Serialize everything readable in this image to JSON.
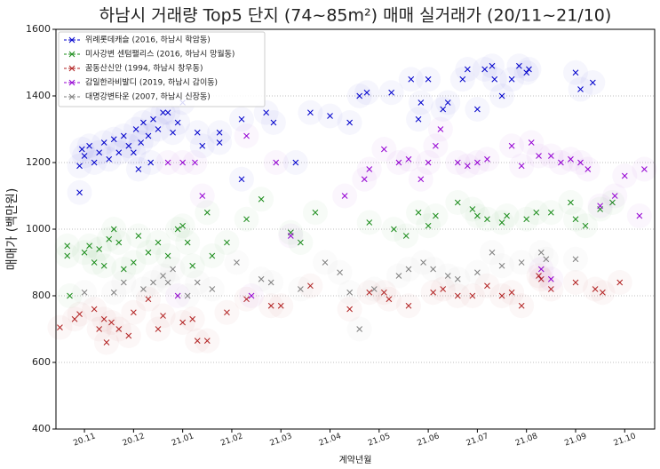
{
  "chart_data": {
    "type": "scatter",
    "title": "하남시 거래량 Top5 단지 (74~85m²) 매매 실거래가 (20/11~21/10)",
    "xlabel": "계약년월",
    "ylabel": "매매가 (백만원)",
    "xlim": [
      -0.58,
      11.61
    ],
    "xticks": [
      {
        "value": 0,
        "label": "20.11"
      },
      {
        "value": 1,
        "label": "20.12"
      },
      {
        "value": 2,
        "label": "21.01"
      },
      {
        "value": 3,
        "label": "21.02"
      },
      {
        "value": 4,
        "label": "21.03"
      },
      {
        "value": 5,
        "label": "21.04"
      },
      {
        "value": 6,
        "label": "21.05"
      },
      {
        "value": 7,
        "label": "21.06"
      },
      {
        "value": 8,
        "label": "21.07"
      },
      {
        "value": 9,
        "label": "21.08"
      },
      {
        "value": 10,
        "label": "21.09"
      },
      {
        "value": 11,
        "label": "21.10"
      }
    ],
    "ylim": [
      400,
      1600
    ],
    "yticks": [
      400,
      600,
      800,
      1000,
      1200,
      1400,
      1600
    ],
    "grid": true,
    "legend": "upper left",
    "series": [
      {
        "name": "위례롯데캐슬  (2016, 하남시 학암동)",
        "color": "#0000cc",
        "x": [
          -0.1,
          -0.1,
          -0.05,
          0.0,
          0.1,
          0.2,
          0.3,
          0.4,
          0.5,
          0.6,
          0.7,
          0.8,
          0.9,
          1.0,
          1.05,
          1.1,
          1.15,
          1.2,
          1.3,
          1.35,
          1.4,
          1.5,
          1.6,
          1.7,
          1.8,
          1.9,
          2.0,
          2.3,
          2.4,
          2.75,
          2.75,
          3.2,
          3.2,
          3.7,
          3.85,
          4.3,
          4.6,
          5.0,
          5.4,
          5.6,
          5.75,
          6.25,
          6.65,
          6.8,
          6.85,
          7.0,
          7.3,
          7.4,
          7.7,
          7.8,
          8.0,
          8.15,
          8.3,
          8.35,
          8.5,
          8.7,
          8.85,
          9.0,
          9.05,
          10.0,
          10.1,
          10.35
        ],
        "values": [
          1110,
          1190,
          1240,
          1220,
          1250,
          1200,
          1230,
          1260,
          1210,
          1270,
          1230,
          1280,
          1250,
          1230,
          1300,
          1180,
          1260,
          1320,
          1280,
          1200,
          1330,
          1300,
          1350,
          1350,
          1290,
          1320,
          1380,
          1290,
          1250,
          1290,
          1260,
          1330,
          1150,
          1350,
          1320,
          1200,
          1350,
          1340,
          1320,
          1400,
          1410,
          1410,
          1450,
          1330,
          1380,
          1450,
          1360,
          1380,
          1450,
          1480,
          1360,
          1480,
          1490,
          1450,
          1400,
          1450,
          1490,
          1470,
          1480,
          1470,
          1420,
          1440
        ]
      },
      {
        "name": "미사강변 센텀팰리스 (2016, 하남시 망월동)",
        "color": "#1a8c1a",
        "x": [
          -0.35,
          -0.35,
          -0.3,
          0.0,
          0.1,
          0.2,
          0.3,
          0.4,
          0.5,
          0.6,
          0.7,
          0.8,
          1.0,
          1.1,
          1.3,
          1.5,
          1.7,
          1.9,
          2.0,
          2.1,
          2.2,
          2.5,
          2.6,
          2.9,
          3.3,
          3.6,
          4.2,
          4.4,
          4.7,
          5.8,
          6.3,
          6.55,
          6.8,
          7.0,
          7.15,
          7.6,
          7.9,
          8.0,
          8.2,
          8.5,
          8.6,
          9.0,
          9.2,
          9.5,
          9.9,
          10.0,
          10.2,
          10.5,
          10.75
        ],
        "values": [
          950,
          920,
          800,
          930,
          950,
          900,
          940,
          890,
          970,
          1000,
          960,
          880,
          900,
          980,
          930,
          960,
          920,
          1000,
          1010,
          960,
          890,
          1050,
          920,
          960,
          1030,
          1090,
          990,
          960,
          1050,
          1020,
          1000,
          980,
          1050,
          1010,
          1040,
          1080,
          1060,
          1040,
          1030,
          1020,
          1040,
          1030,
          1050,
          1050,
          1080,
          1030,
          1010,
          1060,
          1080
        ]
      },
      {
        "name": "꿈동산신안 (1994, 하남시 창우동)",
        "color": "#b22222",
        "x": [
          -0.5,
          -0.2,
          -0.1,
          0.2,
          0.3,
          0.4,
          0.45,
          0.55,
          0.7,
          0.9,
          1.0,
          1.3,
          1.5,
          1.6,
          2.0,
          2.2,
          2.3,
          2.5,
          2.9,
          3.3,
          3.8,
          4.0,
          4.6,
          5.4,
          5.8,
          6.1,
          6.2,
          6.6,
          7.1,
          7.3,
          7.6,
          7.9,
          8.2,
          8.5,
          8.7,
          8.9,
          9.25,
          9.3,
          9.5,
          10.0,
          10.4,
          10.55,
          10.9
        ],
        "values": [
          705,
          730,
          745,
          760,
          700,
          730,
          660,
          720,
          700,
          680,
          750,
          790,
          700,
          740,
          720,
          730,
          665,
          665,
          750,
          790,
          770,
          770,
          830,
          760,
          810,
          810,
          790,
          770,
          810,
          820,
          800,
          800,
          830,
          800,
          810,
          770,
          860,
          850,
          820,
          840,
          820,
          810,
          840
        ]
      },
      {
        "name": "감일한라비발디 (2019, 하남시 감이동)",
        "color": "#9400d3",
        "x": [
          1.7,
          2.0,
          2.25,
          2.4,
          3.3,
          4.2,
          5.3,
          5.7,
          5.8,
          6.1,
          6.4,
          6.6,
          6.85,
          7.0,
          7.15,
          7.25,
          7.6,
          7.8,
          8.0,
          8.2,
          8.7,
          8.9,
          9.1,
          9.25,
          9.5,
          9.7,
          9.9,
          10.1,
          10.25,
          10.5,
          10.8,
          11.0,
          11.4,
          11.3,
          9.3,
          9.5,
          3.9,
          1.9,
          3.4
        ],
        "values": [
          1200,
          1200,
          1200,
          1100,
          1280,
          980,
          1100,
          1150,
          1180,
          1240,
          1200,
          1210,
          1150,
          1200,
          1250,
          1300,
          1200,
          1190,
          1200,
          1210,
          1250,
          1190,
          1260,
          1220,
          1220,
          1200,
          1210,
          1200,
          1180,
          1070,
          1100,
          1160,
          1180,
          1040,
          880,
          850,
          1200,
          800,
          800
        ]
      },
      {
        "name": "대명강변타운 (2007, 하남시 신장동)",
        "color": "#808080",
        "x": [
          0.0,
          0.6,
          0.8,
          1.2,
          1.4,
          1.6,
          1.7,
          1.8,
          2.1,
          2.3,
          2.6,
          3.1,
          3.6,
          3.8,
          4.4,
          4.9,
          5.2,
          5.4,
          5.6,
          5.9,
          6.4,
          6.6,
          6.9,
          7.1,
          7.4,
          7.6,
          8.0,
          8.3,
          8.5,
          8.9,
          9.3,
          9.4,
          10.0
        ],
        "values": [
          810,
          810,
          840,
          820,
          840,
          860,
          840,
          880,
          800,
          840,
          820,
          900,
          850,
          840,
          820,
          900,
          870,
          810,
          700,
          820,
          860,
          880,
          900,
          880,
          860,
          850,
          870,
          930,
          890,
          900,
          930,
          910,
          910
        ]
      }
    ]
  }
}
